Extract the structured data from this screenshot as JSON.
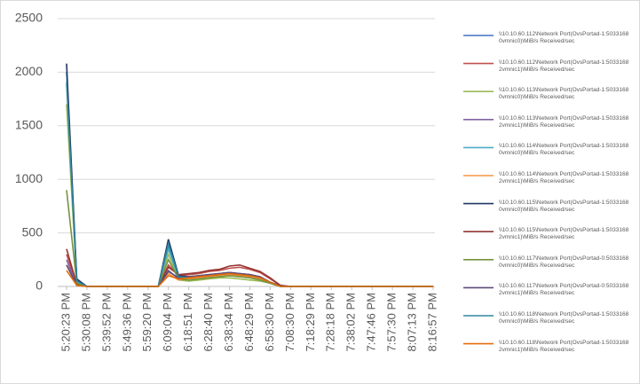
{
  "chart_data": {
    "type": "line",
    "categories": [
      "5:20:23 PM",
      null,
      "5:30:08 PM",
      null,
      "5:39:52 PM",
      null,
      "5:49:36 PM",
      null,
      "5:59:20 PM",
      null,
      "6:09:04 PM",
      null,
      "6:18:51 PM",
      null,
      "6:28:40 PM",
      null,
      "6:38:34 PM",
      null,
      "6:48:29 PM",
      null,
      "6:58:30 PM",
      null,
      "7:08:30 PM",
      null,
      "7:18:29 PM",
      null,
      "7:28:18 PM",
      null,
      "7:38:02 PM",
      null,
      "7:47:46 PM",
      null,
      "7:57:30 PM",
      null,
      "8:07:13 PM",
      null,
      "8:16:57 PM"
    ],
    "ylim": [
      0,
      2500
    ],
    "yticks": [
      0,
      500,
      1000,
      1500,
      2000,
      2500
    ],
    "grid": true,
    "series": [
      {
        "name": "\\\\10.10.60.112\\Network Port(OvsPortad-1:5033168 0vmnic0)\\MiB/s Received/sec",
        "color": "#4472c4",
        "values": [
          2000,
          60,
          0,
          0,
          0,
          0,
          0,
          0,
          0,
          0,
          380,
          90,
          80,
          90,
          100,
          110,
          120,
          110,
          100,
          80,
          40,
          5,
          0,
          0,
          0,
          0,
          0,
          0,
          0,
          0,
          0,
          0,
          0,
          0,
          0,
          0,
          0
        ]
      },
      {
        "name": "\\\\10.10.60.112\\Network Port(OvsPortad-1:5033168 2vmnic1)\\MiB/s Received/sec",
        "color": "#c0504d",
        "values": [
          300,
          20,
          0,
          0,
          0,
          0,
          0,
          0,
          0,
          0,
          200,
          100,
          110,
          120,
          140,
          150,
          170,
          180,
          160,
          130,
          70,
          10,
          0,
          0,
          0,
          0,
          0,
          0,
          0,
          0,
          0,
          0,
          0,
          0,
          0,
          0,
          0
        ]
      },
      {
        "name": "\\\\10.10.60.113\\Network Port(OvsPortad-1:5033168 0vmnic0)\\MiB/s Received/sec",
        "color": "#9bbb59",
        "values": [
          1700,
          40,
          0,
          0,
          0,
          0,
          0,
          0,
          0,
          0,
          300,
          60,
          50,
          60,
          70,
          80,
          80,
          70,
          60,
          50,
          30,
          0,
          0,
          0,
          0,
          0,
          0,
          0,
          0,
          0,
          0,
          0,
          0,
          0,
          0,
          0,
          0
        ]
      },
      {
        "name": "\\\\10.10.60.113\\Network Port(OvsPortad-1:5033168 2vmnic1)\\MiB/s Received/sec",
        "color": "#8064a2",
        "values": [
          250,
          10,
          0,
          0,
          0,
          0,
          0,
          0,
          0,
          0,
          150,
          70,
          80,
          90,
          100,
          110,
          120,
          110,
          100,
          80,
          40,
          0,
          0,
          0,
          0,
          0,
          0,
          0,
          0,
          0,
          0,
          0,
          0,
          0,
          0,
          0,
          0
        ]
      },
      {
        "name": "\\\\10.10.60.114\\Network Port(OvsPortad-1:5033168 0vmnic0)\\MiB/s Received/sec",
        "color": "#4bacc6",
        "values": [
          2000,
          50,
          0,
          0,
          0,
          0,
          0,
          0,
          0,
          0,
          350,
          80,
          70,
          80,
          90,
          100,
          110,
          100,
          90,
          70,
          30,
          0,
          0,
          0,
          0,
          0,
          0,
          0,
          0,
          0,
          0,
          0,
          0,
          0,
          0,
          0,
          0
        ]
      },
      {
        "name": "\\\\10.10.60.114\\Network Port(OvsPortad-1:5033168 2vmnic1)\\MiB/s Received/sec",
        "color": "#f79646",
        "values": [
          200,
          10,
          0,
          0,
          0,
          0,
          0,
          0,
          0,
          0,
          120,
          60,
          70,
          80,
          90,
          100,
          110,
          100,
          90,
          70,
          30,
          0,
          0,
          0,
          0,
          0,
          0,
          0,
          0,
          0,
          0,
          0,
          0,
          0,
          0,
          0,
          0
        ]
      },
      {
        "name": "\\\\10.10.60.115\\Network Port(OvsPortad-1:5033168 0vmnic0)\\MiB/s Received/sec",
        "color": "#1f3864",
        "values": [
          2080,
          70,
          0,
          0,
          0,
          0,
          0,
          0,
          0,
          0,
          440,
          100,
          90,
          100,
          110,
          120,
          130,
          120,
          110,
          90,
          40,
          5,
          0,
          0,
          0,
          0,
          0,
          0,
          0,
          0,
          0,
          0,
          0,
          0,
          0,
          0,
          0
        ]
      },
      {
        "name": "\\\\10.10.60.115\\Network Port(OvsPortad-1:5033168 2vmnic1)\\MiB/s Received/sec",
        "color": "#943634",
        "values": [
          350,
          20,
          0,
          0,
          0,
          0,
          0,
          0,
          0,
          0,
          180,
          110,
          120,
          130,
          150,
          160,
          190,
          200,
          170,
          140,
          80,
          10,
          0,
          0,
          0,
          0,
          0,
          0,
          0,
          0,
          0,
          0,
          0,
          0,
          0,
          0,
          0
        ]
      },
      {
        "name": "\\\\10.10.60.117\\Network Port(OvsPortad-0:5033168 0vmnic0)\\MiB/s Received/sec",
        "color": "#77933c",
        "values": [
          900,
          30,
          0,
          0,
          0,
          0,
          0,
          0,
          0,
          0,
          250,
          70,
          60,
          70,
          80,
          90,
          100,
          90,
          80,
          60,
          30,
          0,
          0,
          0,
          0,
          0,
          0,
          0,
          0,
          0,
          0,
          0,
          0,
          0,
          0,
          0,
          0
        ]
      },
      {
        "name": "\\\\10.10.60.117\\Network Port(OvsPortad-0:5033168 2vmnic1)\\MiB/s Received/sec",
        "color": "#5f497a",
        "values": [
          200,
          10,
          0,
          0,
          0,
          0,
          0,
          0,
          0,
          0,
          140,
          80,
          90,
          100,
          110,
          120,
          130,
          120,
          110,
          90,
          40,
          0,
          0,
          0,
          0,
          0,
          0,
          0,
          0,
          0,
          0,
          0,
          0,
          0,
          0,
          0,
          0
        ]
      },
      {
        "name": "\\\\10.10.60.118\\Network Port(OvsPortad-1:5033168 0vmnic0)\\MiB/s Received/sec",
        "color": "#31859c",
        "values": [
          1900,
          50,
          0,
          0,
          0,
          0,
          0,
          0,
          0,
          0,
          400,
          90,
          80,
          90,
          100,
          110,
          120,
          110,
          100,
          80,
          40,
          0,
          0,
          0,
          0,
          0,
          0,
          0,
          0,
          0,
          0,
          0,
          0,
          0,
          0,
          0,
          0
        ]
      },
      {
        "name": "\\\\10.10.60.118\\Network Port(OvsPortad-1:5033168 2vmnic1)\\MiB/s Received/sec",
        "color": "#e46c0a",
        "values": [
          150,
          10,
          0,
          0,
          0,
          0,
          0,
          0,
          0,
          0,
          100,
          70,
          80,
          90,
          100,
          110,
          120,
          110,
          100,
          80,
          40,
          0,
          0,
          0,
          0,
          0,
          0,
          0,
          0,
          0,
          0,
          0,
          0,
          0,
          0,
          0,
          0
        ]
      }
    ]
  }
}
